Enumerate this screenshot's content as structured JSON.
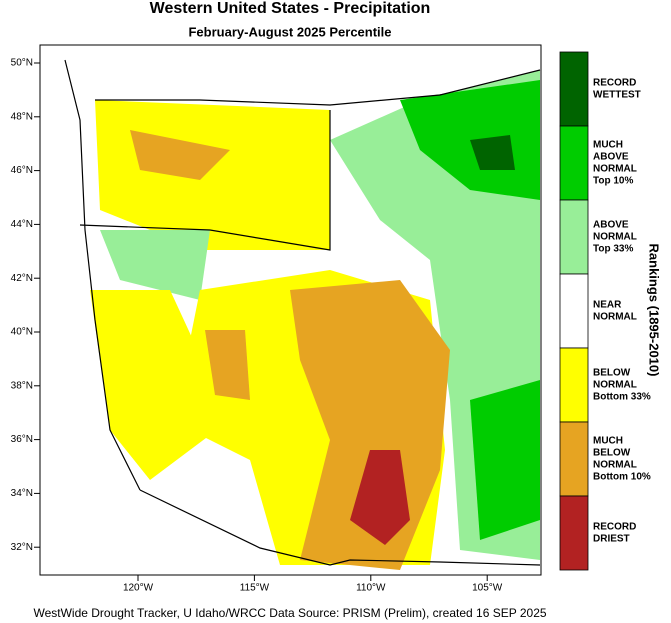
{
  "title": "Western United States - Precipitation",
  "subtitle": "February-August 2025 Percentile",
  "lat_ticks": [
    "50°N",
    "48°N",
    "46°N",
    "44°N",
    "42°N",
    "40°N",
    "38°N",
    "36°N",
    "34°N",
    "32°N"
  ],
  "lon_ticks": [
    "120°W",
    "115°W",
    "110°W",
    "105°W"
  ],
  "legend": {
    "title": "Rankings (1895-2010)",
    "entries": [
      {
        "lines": [
          "RECORD",
          "WETTEST"
        ],
        "color": "#006400"
      },
      {
        "lines": [
          "MUCH",
          "ABOVE",
          "NORMAL",
          "Top 10%"
        ],
        "color": "#00cc00"
      },
      {
        "lines": [
          "ABOVE",
          "NORMAL",
          "Top 33%"
        ],
        "color": "#98ee98"
      },
      {
        "lines": [
          "NEAR",
          "NORMAL"
        ],
        "color": "#ffffff"
      },
      {
        "lines": [
          "BELOW",
          "NORMAL",
          "Bottom 33%"
        ],
        "color": "#ffff00"
      },
      {
        "lines": [
          "MUCH",
          "BELOW",
          "NORMAL",
          "Bottom 10%"
        ],
        "color": "#e6a422"
      },
      {
        "lines": [
          "RECORD",
          "DRIEST"
        ],
        "color": "#b22222"
      }
    ]
  },
  "footer": "WestWide Drought Tracker, U Idaho/WRCC Data Source: PRISM (Prelim), created 16 SEP 2025"
}
